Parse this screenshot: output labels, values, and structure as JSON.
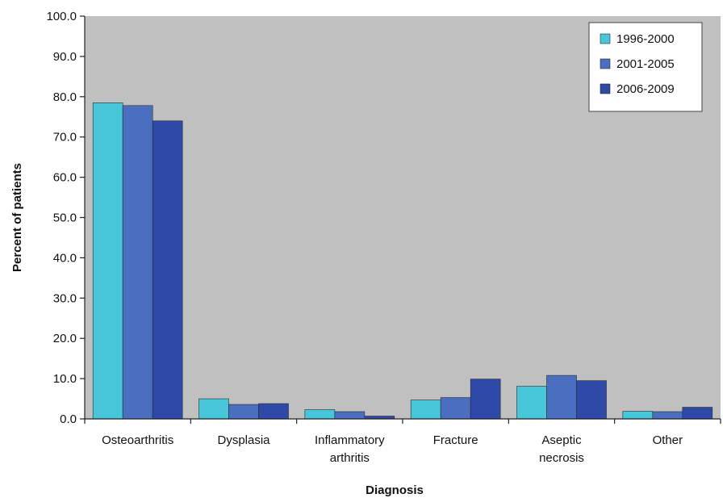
{
  "chart_data": {
    "type": "bar",
    "title": "",
    "xlabel": "Diagnosis",
    "ylabel": "Percent of patients",
    "ylim": [
      0,
      100
    ],
    "yticks": [
      "0.0",
      "10.0",
      "20.0",
      "30.0",
      "40.0",
      "50.0",
      "60.0",
      "70.0",
      "80.0",
      "90.0",
      "100.0"
    ],
    "grid": false,
    "legend_position": "top-right",
    "categories": [
      [
        "Osteoarthritis"
      ],
      [
        "Dysplasia"
      ],
      [
        "Inflammatory",
        "arthritis"
      ],
      [
        "Fracture"
      ],
      [
        "Aseptic",
        "necrosis"
      ],
      [
        "Other"
      ]
    ],
    "series": [
      {
        "name": "1996-2000",
        "color": "#46c6d8",
        "values": [
          78.5,
          5.0,
          2.3,
          4.7,
          8.1,
          1.9
        ]
      },
      {
        "name": "2001-2005",
        "color": "#4a6fc0",
        "values": [
          77.8,
          3.6,
          1.8,
          5.3,
          10.8,
          1.8
        ]
      },
      {
        "name": "2006-2009",
        "color": "#2e49a8",
        "values": [
          74.0,
          3.8,
          0.7,
          9.9,
          9.5,
          2.9
        ]
      }
    ],
    "plot_background": "#c0c0c0"
  }
}
